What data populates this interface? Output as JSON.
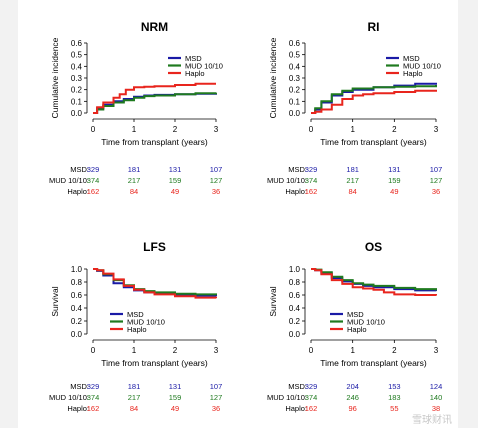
{
  "watermark": "雪球财讯",
  "chart_data": [
    {
      "type": "line",
      "title": "NRM",
      "xlabel": "Time from transplant (years)",
      "ylabel": "Cumulative incidence",
      "xlim": [
        0,
        3
      ],
      "ylim": [
        0,
        0.6
      ],
      "xticks": [
        "0",
        "1",
        "2",
        "3"
      ],
      "yticks": [
        "0.0",
        "0.1",
        "0.2",
        "0.3",
        "0.4",
        "0.5",
        "0.6"
      ],
      "legend_position": "top-right",
      "series": [
        {
          "name": "MSD",
          "color": "#1a1aa6",
          "x": [
            0,
            0.1,
            0.25,
            0.5,
            0.75,
            1.0,
            1.25,
            1.5,
            2.0,
            2.5,
            3.0
          ],
          "y": [
            0,
            0.04,
            0.07,
            0.1,
            0.12,
            0.14,
            0.15,
            0.155,
            0.16,
            0.165,
            0.17
          ]
        },
        {
          "name": "MUD 10/10",
          "color": "#1f7a1f",
          "x": [
            0,
            0.1,
            0.25,
            0.5,
            0.75,
            1.0,
            1.25,
            1.5,
            2.0,
            2.5,
            3.0
          ],
          "y": [
            0,
            0.03,
            0.06,
            0.09,
            0.11,
            0.13,
            0.145,
            0.15,
            0.16,
            0.17,
            0.175
          ]
        },
        {
          "name": "Haplo",
          "color": "#e8251d",
          "x": [
            0,
            0.1,
            0.25,
            0.5,
            0.65,
            0.8,
            1.0,
            1.25,
            1.5,
            2.0,
            2.5,
            3.0
          ],
          "y": [
            0,
            0.05,
            0.09,
            0.13,
            0.16,
            0.2,
            0.22,
            0.225,
            0.23,
            0.24,
            0.25,
            0.25
          ]
        }
      ],
      "risk_table": {
        "times": [
          "0",
          "1",
          "2",
          "3"
        ],
        "rows": [
          {
            "label": "MSD:",
            "color": "#1a1aa6",
            "values": [
              "329",
              "181",
              "131",
              "107"
            ]
          },
          {
            "label": "MUD 10/10:",
            "color": "#1f7a1f",
            "values": [
              "374",
              "217",
              "159",
              "127"
            ]
          },
          {
            "label": "Haplo:",
            "color": "#e8251d",
            "values": [
              "162",
              "84",
              "49",
              "36"
            ]
          }
        ]
      }
    },
    {
      "type": "line",
      "title": "RI",
      "xlabel": "Time from transplant (years)",
      "ylabel": "Cumulative incidence",
      "xlim": [
        0,
        3
      ],
      "ylim": [
        0,
        0.6
      ],
      "xticks": [
        "0",
        "1",
        "2",
        "3"
      ],
      "yticks": [
        "0.0",
        "0.1",
        "0.2",
        "0.3",
        "0.4",
        "0.5",
        "0.6"
      ],
      "legend_position": "top-right",
      "series": [
        {
          "name": "MSD",
          "color": "#1a1aa6",
          "x": [
            0,
            0.1,
            0.25,
            0.5,
            0.75,
            1.0,
            1.5,
            2.0,
            2.5,
            3.0
          ],
          "y": [
            0,
            0.03,
            0.09,
            0.15,
            0.18,
            0.2,
            0.22,
            0.235,
            0.25,
            0.26
          ]
        },
        {
          "name": "MUD 10/10",
          "color": "#1f7a1f",
          "x": [
            0,
            0.1,
            0.25,
            0.5,
            0.75,
            1.0,
            1.5,
            2.0,
            2.5,
            3.0
          ],
          "y": [
            0,
            0.04,
            0.1,
            0.16,
            0.19,
            0.21,
            0.22,
            0.225,
            0.23,
            0.24
          ]
        },
        {
          "name": "Haplo",
          "color": "#e8251d",
          "x": [
            0,
            0.1,
            0.25,
            0.5,
            0.75,
            1.0,
            1.25,
            1.5,
            2.0,
            2.5,
            3.0
          ],
          "y": [
            0,
            0.01,
            0.03,
            0.07,
            0.12,
            0.15,
            0.16,
            0.17,
            0.18,
            0.19,
            0.2
          ]
        }
      ],
      "risk_table": {
        "times": [
          "0",
          "1",
          "2",
          "3"
        ],
        "rows": [
          {
            "label": "MSD:",
            "color": "#1a1aa6",
            "values": [
              "329",
              "181",
              "131",
              "107"
            ]
          },
          {
            "label": "MUD 10/10:",
            "color": "#1f7a1f",
            "values": [
              "374",
              "217",
              "159",
              "127"
            ]
          },
          {
            "label": "Haplo:",
            "color": "#e8251d",
            "values": [
              "162",
              "84",
              "49",
              "36"
            ]
          }
        ]
      }
    },
    {
      "type": "line",
      "title": "LFS",
      "xlabel": "Time from transplant (years)",
      "ylabel": "Survival",
      "xlim": [
        0,
        3
      ],
      "ylim": [
        0,
        1.0
      ],
      "xticks": [
        "0",
        "1",
        "2",
        "3"
      ],
      "yticks": [
        "0.0",
        "0.2",
        "0.4",
        "0.6",
        "0.8",
        "1.0"
      ],
      "legend_position": "bottom-left",
      "series": [
        {
          "name": "MSD",
          "color": "#1a1aa6",
          "x": [
            0,
            0.1,
            0.25,
            0.5,
            0.75,
            1.0,
            1.25,
            1.5,
            2.0,
            2.5,
            3.0
          ],
          "y": [
            1.0,
            0.97,
            0.9,
            0.78,
            0.72,
            0.67,
            0.64,
            0.62,
            0.6,
            0.59,
            0.58
          ]
        },
        {
          "name": "MUD 10/10",
          "color": "#1f7a1f",
          "x": [
            0,
            0.1,
            0.25,
            0.5,
            0.75,
            1.0,
            1.25,
            1.5,
            2.0,
            2.5,
            3.0
          ],
          "y": [
            1.0,
            0.98,
            0.92,
            0.83,
            0.75,
            0.69,
            0.66,
            0.64,
            0.62,
            0.61,
            0.6
          ]
        },
        {
          "name": "Haplo",
          "color": "#e8251d",
          "x": [
            0,
            0.1,
            0.25,
            0.5,
            0.75,
            1.0,
            1.25,
            1.5,
            2.0,
            2.5,
            3.0
          ],
          "y": [
            1.0,
            0.98,
            0.93,
            0.84,
            0.74,
            0.68,
            0.64,
            0.61,
            0.58,
            0.56,
            0.55
          ]
        }
      ],
      "risk_table": {
        "times": [
          "0",
          "1",
          "2",
          "3"
        ],
        "rows": [
          {
            "label": "MSD:",
            "color": "#1a1aa6",
            "values": [
              "329",
              "181",
              "131",
              "107"
            ]
          },
          {
            "label": "MUD 10/10:",
            "color": "#1f7a1f",
            "values": [
              "374",
              "217",
              "159",
              "127"
            ]
          },
          {
            "label": "Haplo:",
            "color": "#e8251d",
            "values": [
              "162",
              "84",
              "49",
              "36"
            ]
          }
        ]
      }
    },
    {
      "type": "line",
      "title": "OS",
      "xlabel": "Time from transplant (years)",
      "ylabel": "Survival",
      "xlim": [
        0,
        3
      ],
      "ylim": [
        0,
        1.0
      ],
      "xticks": [
        "0",
        "1",
        "2",
        "3"
      ],
      "yticks": [
        "0.0",
        "0.2",
        "0.4",
        "0.6",
        "0.8",
        "1.0"
      ],
      "legend_position": "bottom-left",
      "series": [
        {
          "name": "MSD",
          "color": "#1a1aa6",
          "x": [
            0,
            0.1,
            0.25,
            0.5,
            0.75,
            1.0,
            1.25,
            1.5,
            2.0,
            2.5,
            3.0
          ],
          "y": [
            1.0,
            0.98,
            0.93,
            0.86,
            0.81,
            0.77,
            0.74,
            0.72,
            0.69,
            0.67,
            0.66
          ]
        },
        {
          "name": "MUD 10/10",
          "color": "#1f7a1f",
          "x": [
            0,
            0.1,
            0.25,
            0.5,
            0.75,
            1.0,
            1.25,
            1.5,
            2.0,
            2.5,
            3.0
          ],
          "y": [
            1.0,
            0.99,
            0.95,
            0.88,
            0.83,
            0.78,
            0.76,
            0.74,
            0.71,
            0.69,
            0.67
          ]
        },
        {
          "name": "Haplo",
          "color": "#e8251d",
          "x": [
            0,
            0.1,
            0.25,
            0.5,
            0.75,
            1.0,
            1.25,
            1.5,
            1.75,
            2.0,
            2.5,
            3.0
          ],
          "y": [
            1.0,
            0.98,
            0.92,
            0.83,
            0.77,
            0.72,
            0.7,
            0.68,
            0.64,
            0.61,
            0.6,
            0.59
          ]
        }
      ],
      "risk_table": {
        "times": [
          "0",
          "1",
          "2",
          "3"
        ],
        "rows": [
          {
            "label": "MSD:",
            "color": "#1a1aa6",
            "values": [
              "329",
              "204",
              "153",
              "124"
            ]
          },
          {
            "label": "MUD 10/10:",
            "color": "#1f7a1f",
            "values": [
              "374",
              "246",
              "183",
              "140"
            ]
          },
          {
            "label": "Haplo:",
            "color": "#e8251d",
            "values": [
              "162",
              "96",
              "55",
              "38"
            ]
          }
        ]
      }
    }
  ]
}
